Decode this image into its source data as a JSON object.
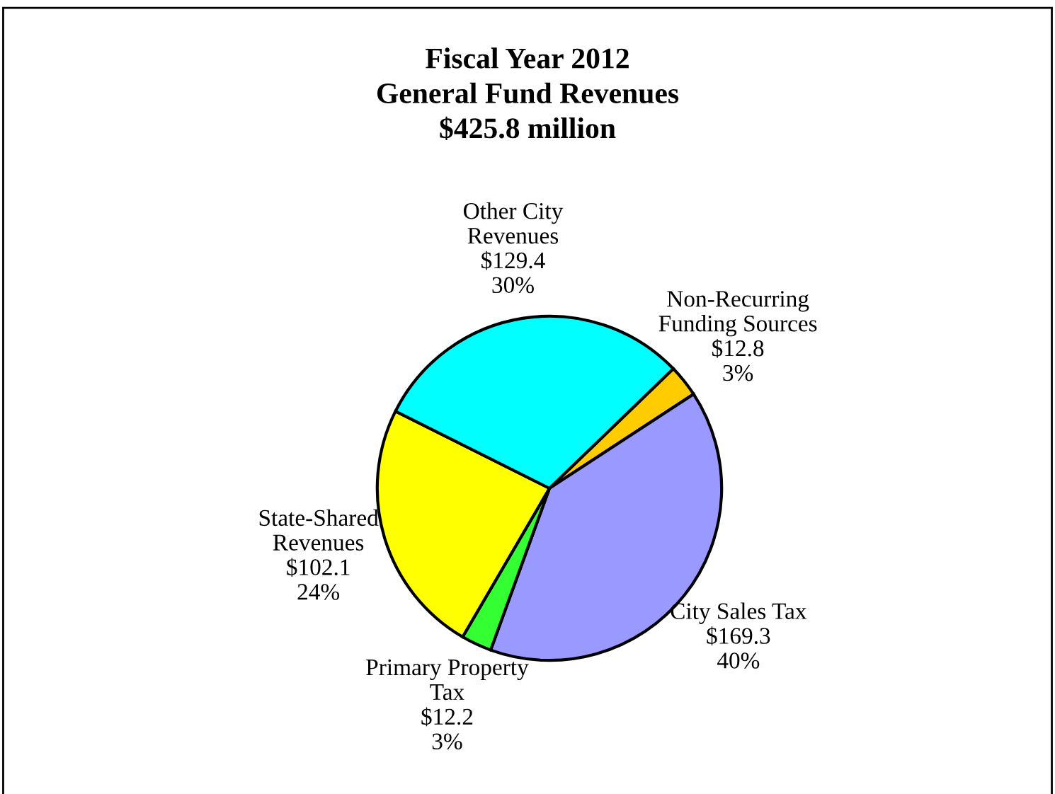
{
  "chart_data": {
    "type": "pie",
    "title": "Fiscal Year 2012\nGeneral Fund Revenues\n$425.8 million",
    "categories": [
      "Non-Recurring\nFunding Sources",
      "City Sales Tax",
      "Primary Property\nTax",
      "State-Shared\nRevenues",
      "Other City\nRevenues"
    ],
    "values": [
      12.8,
      169.3,
      12.2,
      102.1,
      129.4
    ],
    "value_labels": [
      "$12.8\n3%",
      "$169.3\n40%",
      "$12.2\n3%",
      "$102.1\n24%",
      "$129.4\n30%"
    ],
    "colors": [
      "#ffcc00",
      "#9999ff",
      "#33ff33",
      "#ffff00",
      "#00ffff"
    ]
  }
}
